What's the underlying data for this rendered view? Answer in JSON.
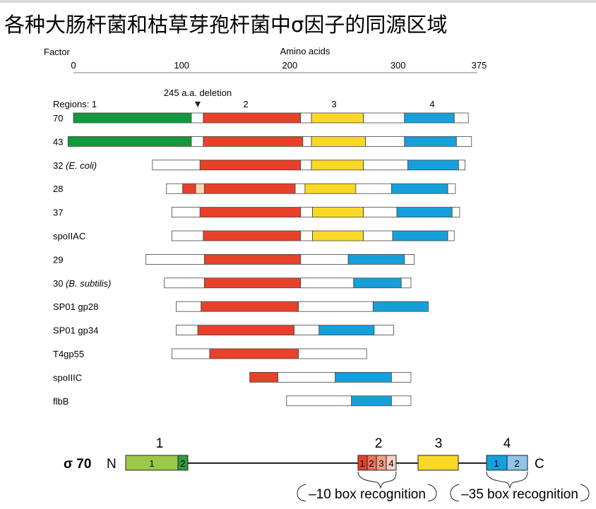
{
  "title": "各种大肠杆菌和枯草芽孢杆菌中σ因子的同源区域",
  "axis": {
    "label_factor": "Factor",
    "label": "Amino acids",
    "ticks": [
      0,
      100,
      200,
      300,
      375
    ]
  },
  "deletion_label": "245 a.a. deletion",
  "regions_label": "Regions: 1",
  "region_labels": [
    "2",
    "3",
    "4"
  ],
  "colors": {
    "green": "#12983e",
    "red": "#e7412a",
    "yellow": "#fad826",
    "blue": "#16a0db",
    "light": "#fbd9b8",
    "white": "#ffffff"
  },
  "factors": [
    {
      "name": "70",
      "italic": "",
      "segments": [
        {
          "s": 0,
          "e": 109,
          "c": "green"
        },
        {
          "s": 109,
          "e": 120,
          "c": "white"
        },
        {
          "s": 120,
          "e": 210,
          "c": "red"
        },
        {
          "s": 210,
          "e": 220,
          "c": "white"
        },
        {
          "s": 220,
          "e": 268,
          "c": "yellow"
        },
        {
          "s": 268,
          "e": 306,
          "c": "white"
        },
        {
          "s": 306,
          "e": 352,
          "c": "blue"
        },
        {
          "s": 352,
          "e": 365,
          "c": "white"
        }
      ]
    },
    {
      "name": "43",
      "italic": "",
      "segments": [
        {
          "s": -5,
          "e": 109,
          "c": "green"
        },
        {
          "s": 109,
          "e": 120,
          "c": "white"
        },
        {
          "s": 120,
          "e": 212,
          "c": "red"
        },
        {
          "s": 212,
          "e": 220,
          "c": "white"
        },
        {
          "s": 220,
          "e": 270,
          "c": "yellow"
        },
        {
          "s": 270,
          "e": 306,
          "c": "white"
        },
        {
          "s": 306,
          "e": 354,
          "c": "blue"
        },
        {
          "s": 354,
          "e": 368,
          "c": "white"
        }
      ]
    },
    {
      "name": "32",
      "italic": "(E. coli)",
      "segments": [
        {
          "s": 73,
          "e": 117,
          "c": "white"
        },
        {
          "s": 117,
          "e": 210,
          "c": "red"
        },
        {
          "s": 210,
          "e": 220,
          "c": "white"
        },
        {
          "s": 220,
          "e": 268,
          "c": "yellow"
        },
        {
          "s": 268,
          "e": 309,
          "c": "white"
        },
        {
          "s": 309,
          "e": 356,
          "c": "blue"
        },
        {
          "s": 356,
          "e": 362,
          "c": "white"
        }
      ]
    },
    {
      "name": "28",
      "italic": "",
      "segments": [
        {
          "s": 86,
          "e": 101,
          "c": "white"
        },
        {
          "s": 101,
          "e": 113,
          "c": "red"
        },
        {
          "s": 113,
          "e": 121,
          "c": "light"
        },
        {
          "s": 121,
          "e": 205,
          "c": "red"
        },
        {
          "s": 205,
          "e": 214,
          "c": "white"
        },
        {
          "s": 214,
          "e": 261,
          "c": "yellow"
        },
        {
          "s": 261,
          "e": 294,
          "c": "white"
        },
        {
          "s": 294,
          "e": 346,
          "c": "blue"
        },
        {
          "s": 346,
          "e": 353,
          "c": "white"
        }
      ]
    },
    {
      "name": "37",
      "italic": "",
      "segments": [
        {
          "s": 91,
          "e": 117,
          "c": "white"
        },
        {
          "s": 117,
          "e": 210,
          "c": "red"
        },
        {
          "s": 210,
          "e": 221,
          "c": "white"
        },
        {
          "s": 221,
          "e": 268,
          "c": "yellow"
        },
        {
          "s": 268,
          "e": 299,
          "c": "white"
        },
        {
          "s": 299,
          "e": 350,
          "c": "blue"
        },
        {
          "s": 350,
          "e": 357,
          "c": "white"
        }
      ]
    },
    {
      "name": "spoIIAC",
      "italic": "",
      "segments": [
        {
          "s": 91,
          "e": 120,
          "c": "white"
        },
        {
          "s": 120,
          "e": 210,
          "c": "red"
        },
        {
          "s": 210,
          "e": 221,
          "c": "white"
        },
        {
          "s": 221,
          "e": 268,
          "c": "yellow"
        },
        {
          "s": 268,
          "e": 295,
          "c": "white"
        },
        {
          "s": 295,
          "e": 346,
          "c": "blue"
        },
        {
          "s": 346,
          "e": 352,
          "c": "white"
        }
      ]
    },
    {
      "name": "29",
      "italic": "",
      "segments": [
        {
          "s": 67,
          "e": 121,
          "c": "white"
        },
        {
          "s": 121,
          "e": 210,
          "c": "red"
        },
        {
          "s": 210,
          "e": 254,
          "c": "white"
        },
        {
          "s": 254,
          "e": 306,
          "c": "blue"
        },
        {
          "s": 306,
          "e": 315,
          "c": "white"
        }
      ]
    },
    {
      "name": "30",
      "italic": "(B. subtilis)",
      "segments": [
        {
          "s": 84,
          "e": 121,
          "c": "white"
        },
        {
          "s": 121,
          "e": 210,
          "c": "red"
        },
        {
          "s": 210,
          "e": 259,
          "c": "white"
        },
        {
          "s": 259,
          "e": 303,
          "c": "blue"
        },
        {
          "s": 303,
          "e": 312,
          "c": "white"
        }
      ]
    },
    {
      "name": "SP01 gp28",
      "italic": "",
      "segments": [
        {
          "s": 95,
          "e": 118,
          "c": "white"
        },
        {
          "s": 118,
          "e": 208,
          "c": "red"
        },
        {
          "s": 208,
          "e": 277,
          "c": "white"
        },
        {
          "s": 277,
          "e": 328,
          "c": "blue"
        }
      ]
    },
    {
      "name": "SP01 gp34",
      "italic": "",
      "segments": [
        {
          "s": 95,
          "e": 115,
          "c": "white"
        },
        {
          "s": 115,
          "e": 204,
          "c": "red"
        },
        {
          "s": 204,
          "e": 227,
          "c": "white"
        },
        {
          "s": 227,
          "e": 278,
          "c": "blue"
        },
        {
          "s": 278,
          "e": 296,
          "c": "white"
        }
      ]
    },
    {
      "name": "T4gp55",
      "italic": "",
      "segments": [
        {
          "s": 91,
          "e": 126,
          "c": "white"
        },
        {
          "s": 126,
          "e": 208,
          "c": "red"
        },
        {
          "s": 208,
          "e": 271,
          "c": "white"
        }
      ]
    },
    {
      "name": "spoIIIC",
      "italic": "",
      "segments": [
        {
          "s": 163,
          "e": 189,
          "c": "red"
        },
        {
          "s": 189,
          "e": 242,
          "c": "white"
        },
        {
          "s": 242,
          "e": 294,
          "c": "blue"
        },
        {
          "s": 294,
          "e": 312,
          "c": "white"
        }
      ]
    },
    {
      "name": "flbB",
      "italic": "",
      "segments": [
        {
          "s": 197,
          "e": 257,
          "c": "white"
        },
        {
          "s": 257,
          "e": 294,
          "c": "blue"
        },
        {
          "s": 294,
          "e": 312,
          "c": "white"
        }
      ]
    }
  ],
  "sigma": {
    "name": "σ 70",
    "n_label": "N",
    "c_label": "C",
    "region_labels": [
      "1",
      "2",
      "3",
      "4"
    ],
    "box_labels": [
      "1",
      "2",
      "1",
      "2",
      "3",
      "4",
      "1",
      "2"
    ],
    "colors": {
      "r1a": "#9cc84a",
      "r1b": "#2e9a46",
      "r2a": "#e1432a",
      "r2b": "#e8725a",
      "r2c": "#ef9f85",
      "r2d": "#f7cfbf",
      "r3": "#fad826",
      "r4a": "#16a0db",
      "r4b": "#8fc3e8"
    },
    "recognition": [
      "–10 box recognition",
      "–35 box recognition"
    ]
  }
}
